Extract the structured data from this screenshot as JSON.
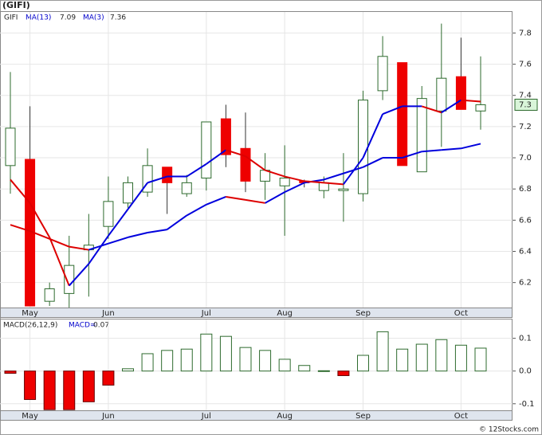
{
  "chart_data": [
    {
      "type": "candlestick",
      "title": "(GIFI)",
      "ticker": "GIFI",
      "categories": [
        null,
        "May",
        null,
        null,
        null,
        "Jun",
        null,
        null,
        null,
        null,
        "Jul",
        null,
        null,
        null,
        "Aug",
        null,
        null,
        null,
        "Sep",
        null,
        null,
        null,
        null,
        "Oct",
        null
      ],
      "open": [
        6.95,
        6.99,
        6.08,
        6.13,
        6.41,
        6.56,
        6.71,
        6.78,
        6.94,
        6.77,
        6.87,
        7.25,
        7.06,
        6.85,
        6.82,
        6.85,
        6.79,
        6.79,
        6.77,
        7.43,
        7.61,
        6.91,
        7.3,
        7.52,
        7.3
      ],
      "high": [
        7.55,
        7.33,
        6.2,
        6.5,
        6.64,
        6.88,
        6.88,
        7.06,
        6.94,
        6.89,
        7.23,
        7.34,
        7.29,
        7.03,
        7.08,
        6.86,
        6.88,
        7.03,
        7.43,
        7.78,
        7.61,
        7.46,
        7.86,
        7.77,
        7.65
      ],
      "low": [
        6.77,
        6.05,
        6.05,
        6.04,
        6.11,
        6.48,
        6.68,
        6.75,
        6.64,
        6.75,
        6.79,
        6.94,
        6.78,
        6.73,
        6.5,
        6.81,
        6.74,
        6.59,
        6.72,
        7.37,
        6.95,
        6.91,
        7.07,
        7.31,
        7.18
      ],
      "close": [
        7.19,
        6.05,
        6.16,
        6.31,
        6.44,
        6.72,
        6.84,
        6.95,
        6.84,
        6.84,
        7.23,
        7.02,
        6.85,
        6.92,
        6.87,
        6.84,
        6.84,
        6.8,
        7.37,
        7.65,
        6.95,
        7.38,
        7.51,
        7.31,
        7.34
      ],
      "up_color": "#ffffff",
      "down_color": "#ee0000",
      "candle_stroke": "#2e6b2e",
      "rising_color": "#0000dd",
      "falling_color": "#dd0000",
      "series": [
        {
          "name": "MA(13)",
          "color": "#0000cc",
          "values": [
            6.57,
            6.53,
            6.48,
            6.43,
            6.41,
            6.45,
            6.49,
            6.52,
            6.54,
            6.63,
            6.7,
            6.75,
            6.73,
            6.71,
            6.78,
            6.84,
            6.86,
            6.9,
            6.94,
            7.0,
            7.0,
            7.04,
            7.05,
            7.06,
            7.09
          ]
        },
        {
          "name": "MA(3)",
          "color": "#0000cc",
          "values": [
            6.86,
            6.71,
            6.49,
            6.18,
            6.32,
            6.5,
            6.67,
            6.84,
            6.88,
            6.88,
            6.96,
            7.05,
            7.01,
            6.92,
            6.88,
            6.85,
            6.84,
            6.83,
            7.0,
            7.28,
            7.33,
            7.33,
            7.29,
            7.37,
            7.36
          ]
        }
      ],
      "last_price": {
        "value": 7.34,
        "label": "7.3"
      },
      "ylim": [
        6.04,
        7.94
      ],
      "yticks": [
        6.2,
        6.4,
        6.6,
        6.8,
        {
          "value": 7,
          "label": "7.0"
        },
        7.2,
        7.4,
        7.6,
        7.8
      ],
      "grid": true
    },
    {
      "type": "bar",
      "title": "MACD(26,12,9)",
      "legend_label": "MACD=",
      "values": [
        -0.007,
        -0.087,
        -0.118,
        -0.118,
        -0.094,
        -0.043,
        0.007,
        0.053,
        0.063,
        0.067,
        0.113,
        0.106,
        0.072,
        0.063,
        0.036,
        0.017,
        0.001,
        -0.014,
        0.048,
        0.12,
        0.067,
        0.082,
        0.096,
        0.079,
        0.07
      ],
      "positive_color": "#ffffff",
      "positive_stroke": "#2e6b2e",
      "negative_color": "#ee0000",
      "negative_stroke": "#660000",
      "ylim": [
        -0.12,
        0.16
      ],
      "yticks": [
        -0.1,
        {
          "value": 0,
          "label": "0.0"
        },
        0.1
      ],
      "grid": true
    },
    {
      "type": "text",
      "watermark": "© 12Stocks.com"
    }
  ]
}
